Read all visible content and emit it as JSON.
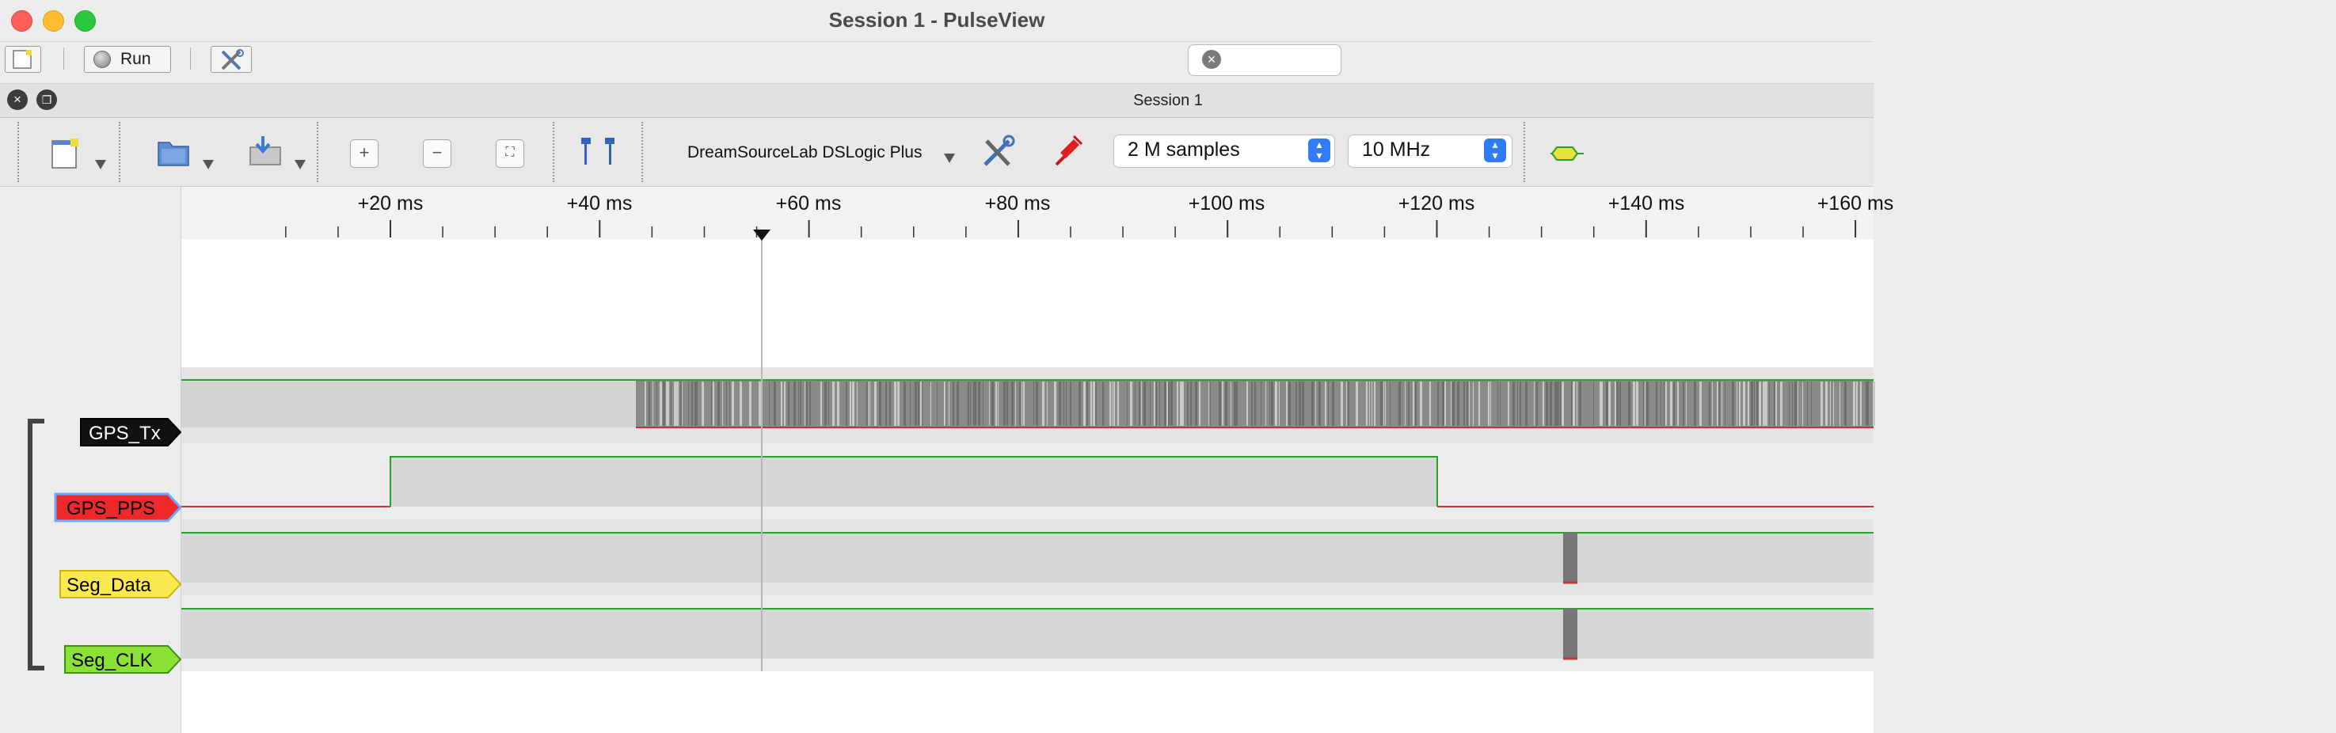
{
  "window": {
    "title": "Session 1 - PulseView",
    "traffic_lights": {
      "close": "#fe5f57",
      "minimize": "#febc2e",
      "zoom": "#28c840"
    }
  },
  "top_toolbar": {
    "run_label": "Run",
    "icons": [
      "new-window-icon",
      "settings-tools-icon"
    ]
  },
  "session": {
    "title": "Session 1"
  },
  "main_toolbar": {
    "device": "DreamSourceLab DSLogic Plus",
    "samples": "2 M samples",
    "samplerate": "10 MHz",
    "icons": [
      "new-view-icon",
      "open-file-icon",
      "save-file-icon",
      "zoom-in-icon",
      "zoom-out-icon",
      "zoom-fit-icon",
      "cursor-pair-icon",
      "device-config-icon",
      "probe-icon",
      "add-decoder-icon"
    ]
  },
  "ruler": {
    "labels": [
      "+20 ms",
      "+40 ms",
      "+60 ms",
      "+80 ms",
      "+100 ms",
      "+120 ms",
      "+140 ms",
      "+160 ms"
    ]
  },
  "channels": [
    {
      "name": "GPS_Tx",
      "color": "#111111",
      "text_color": "#ffffff"
    },
    {
      "name": "GPS_PPS",
      "color": "#ef2929",
      "text_color": "#000000"
    },
    {
      "name": "Seg_Data",
      "color": "#fce94f",
      "text_color": "#000000"
    },
    {
      "name": "Seg_CLK",
      "color": "#8ae234",
      "text_color": "#000000"
    }
  ],
  "colors": {
    "signal_high": "#2ca02c",
    "signal_low": "#cc3333",
    "trace_bg": "#d9d9d9",
    "selection_border": "#6aa9ff"
  }
}
